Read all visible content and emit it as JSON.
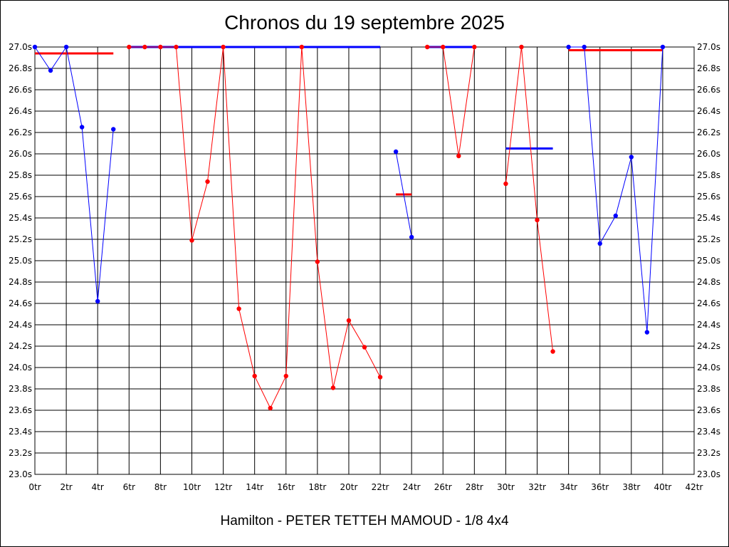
{
  "title": "Chronos du 19 septembre 2025",
  "subtitle": "Hamilton - PETER TETTEH MAMOUD - 1/8 4x4",
  "chart_data": {
    "type": "line",
    "title": "Chronos du 19 septembre 2025",
    "subtitle": "Hamilton - PETER TETTEH MAMOUD - 1/8 4x4",
    "xlim": [
      0,
      42
    ],
    "ylim": [
      23.0,
      27.0
    ],
    "x_ticks": [
      0,
      2,
      4,
      6,
      8,
      10,
      12,
      14,
      16,
      18,
      20,
      22,
      24,
      26,
      28,
      30,
      32,
      34,
      36,
      38,
      40,
      42
    ],
    "x_tick_suffix": "tr",
    "y_ticks": [
      23.0,
      23.2,
      23.4,
      23.6,
      23.8,
      24.0,
      24.2,
      24.4,
      24.6,
      24.8,
      25.0,
      25.2,
      25.4,
      25.6,
      25.8,
      26.0,
      26.2,
      26.4,
      26.6,
      26.8,
      27.0
    ],
    "y_tick_suffix": "s",
    "y_axis_labels_both_sides": true,
    "grid": true,
    "series": [
      {
        "color": "#0000ff",
        "x": [
          0,
          1,
          2,
          3,
          4,
          5
        ],
        "y": [
          27.0,
          26.78,
          27.0,
          26.25,
          24.62,
          26.23
        ]
      },
      {
        "color": "#ff0000",
        "x": [
          6,
          7,
          8,
          9,
          10,
          11,
          12,
          13,
          14,
          15,
          16,
          17,
          18,
          19,
          20,
          21,
          22
        ],
        "y": [
          27.0,
          27.0,
          27.0,
          27.0,
          25.19,
          25.74,
          27.0,
          24.55,
          23.92,
          23.62,
          23.92,
          27.0,
          24.99,
          23.81,
          24.44,
          24.19,
          23.91
        ]
      },
      {
        "color": "#0000ff",
        "x": [
          23,
          24
        ],
        "y": [
          26.02,
          25.22
        ]
      },
      {
        "color": "#ff0000",
        "x": [
          25,
          26,
          27,
          28
        ],
        "y": [
          27.0,
          27.0,
          25.98,
          27.0
        ]
      },
      {
        "color": "#ff0000",
        "x": [
          30,
          31,
          32,
          33
        ],
        "y": [
          25.72,
          27.0,
          25.38,
          24.15
        ]
      },
      {
        "color": "#0000ff",
        "x": [
          34,
          35,
          36,
          37,
          38,
          39,
          40
        ],
        "y": [
          27.0,
          27.0,
          25.16,
          25.42,
          25.97,
          24.33,
          27.0
        ]
      }
    ],
    "average_lines": [
      {
        "color": "#ff0000",
        "x_start": 0,
        "x_end": 5,
        "y": 26.94
      },
      {
        "color": "#0000ff",
        "x_start": 6,
        "x_end": 22,
        "y": 27.0
      },
      {
        "color": "#ff0000",
        "x_start": 23,
        "x_end": 24,
        "y": 25.62
      },
      {
        "color": "#0000ff",
        "x_start": 25,
        "x_end": 28,
        "y": 27.0
      },
      {
        "color": "#0000ff",
        "x_start": 30,
        "x_end": 33,
        "y": 26.05
      },
      {
        "color": "#ff0000",
        "x_start": 34,
        "x_end": 40,
        "y": 26.97
      }
    ]
  }
}
